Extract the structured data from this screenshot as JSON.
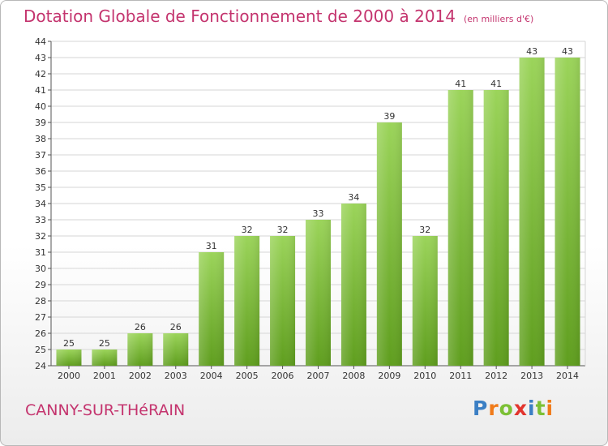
{
  "chart_data": {
    "type": "bar",
    "title": "Dotation Globale de Fonctionnement de 2000 à 2014",
    "subtitle": "(en milliers d'€)",
    "categories": [
      "2000",
      "2001",
      "2002",
      "2003",
      "2004",
      "2005",
      "2006",
      "2007",
      "2008",
      "2009",
      "2010",
      "2011",
      "2012",
      "2013",
      "2014"
    ],
    "values": [
      25,
      25,
      26,
      26,
      31,
      32,
      32,
      33,
      34,
      39,
      32,
      41,
      41,
      43,
      43
    ],
    "ylim": [
      24,
      44
    ],
    "yticks": [
      24,
      25,
      26,
      27,
      28,
      29,
      30,
      31,
      32,
      33,
      34,
      35,
      36,
      37,
      38,
      39,
      40,
      41,
      42,
      43,
      44
    ],
    "grid": true,
    "bar_color": "#7cc035",
    "bar_color_dark": "#5f9e1e",
    "bar_color_light": "#9bd45a"
  },
  "footer": {
    "commune": "CANNY-SUR-THéRAIN",
    "logo": {
      "letters": [
        "P",
        "r",
        "o",
        "x",
        "i",
        "t",
        "i"
      ],
      "colors": [
        "#3b7fc4",
        "#f07b1a",
        "#7cc035",
        "#e2342d",
        "#3b7fc4",
        "#7cc035",
        "#f07b1a"
      ]
    }
  },
  "colors": {
    "accent": "#c4346e"
  }
}
